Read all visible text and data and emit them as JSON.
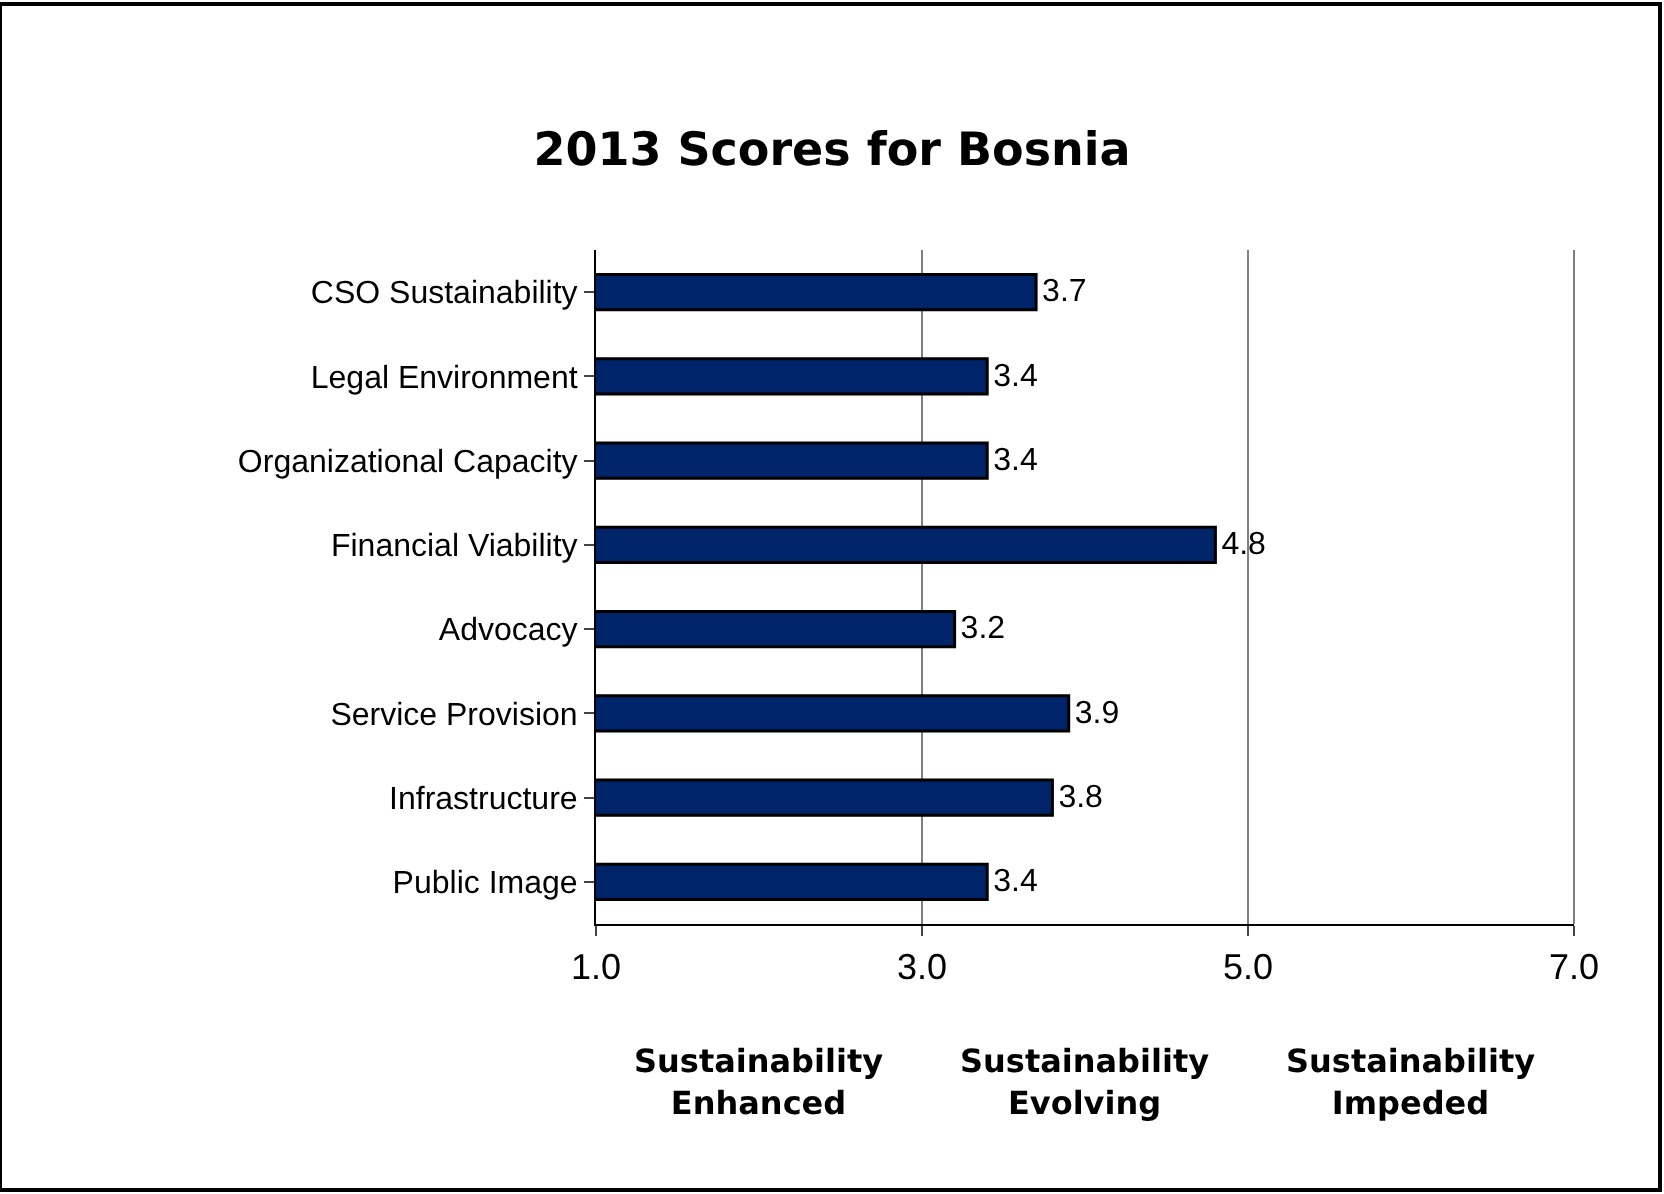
{
  "chart_data": {
    "type": "bar",
    "orientation": "horizontal",
    "title": "2013 Scores for Bosnia",
    "categories": [
      "CSO Sustainability",
      "Legal Environment",
      "Organizational Capacity",
      "Financial Viability",
      "Advocacy",
      "Service Provision",
      "Infrastructure",
      "Public Image"
    ],
    "values": [
      3.7,
      3.4,
      3.4,
      4.8,
      3.2,
      3.9,
      3.8,
      3.4
    ],
    "color": "#002469",
    "xlim": [
      1.0,
      7.0
    ],
    "xticks": [
      {
        "value": 1,
        "label": "1.0"
      },
      {
        "value": 3,
        "label": "3.0"
      },
      {
        "value": 5,
        "label": "5.0"
      },
      {
        "value": 7,
        "label": "7.0"
      }
    ],
    "grid": "x",
    "data_labels": true,
    "annotations": [
      "Sustainability\nEnhanced",
      "Sustainability\nEvolving",
      "Sustainability\nImpeded"
    ]
  }
}
